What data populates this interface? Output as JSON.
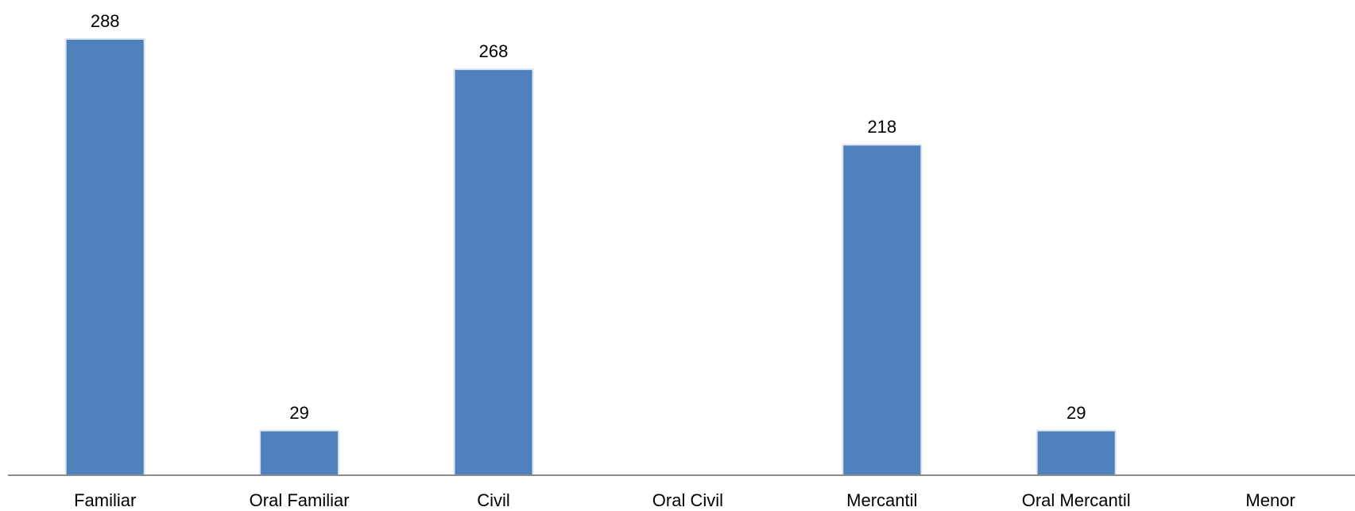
{
  "chart_data": {
    "type": "bar",
    "categories": [
      "Familiar",
      "Oral Familiar",
      "Civil",
      "Oral Civil",
      "Mercantil",
      "Oral Mercantil",
      "Menor"
    ],
    "values": [
      288,
      29,
      268,
      0,
      218,
      29,
      0
    ],
    "data_labels": [
      "288",
      "29",
      "268",
      "",
      "218",
      "29",
      ""
    ],
    "title": "",
    "xlabel": "",
    "ylabel": "",
    "ylim": [
      0,
      288
    ],
    "grid": false,
    "legend": "none",
    "colors": {
      "bar": "#4f81bd",
      "axis": "#8c8c8c"
    }
  }
}
